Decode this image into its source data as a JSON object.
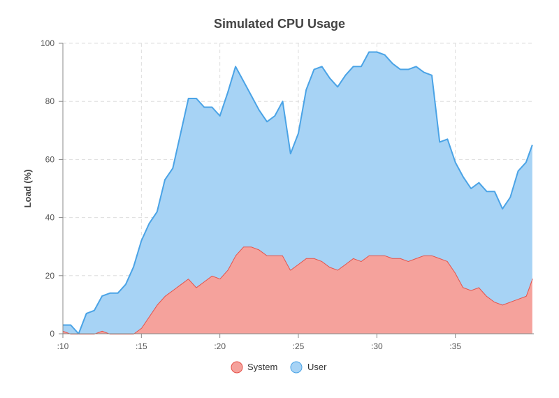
{
  "chart_data": {
    "type": "area",
    "title": "Simulated CPU Usage",
    "xlabel": "",
    "ylabel": "Load (%)",
    "stacked": true,
    "grid": true,
    "legend_position": "bottom-center",
    "x_range": [
      10,
      40
    ],
    "x_ticks": [
      {
        "value": 10,
        "label": ":10"
      },
      {
        "value": 15,
        "label": ":15"
      },
      {
        "value": 20,
        "label": ":20"
      },
      {
        "value": 25,
        "label": ":25"
      },
      {
        "value": 30,
        "label": ":30"
      },
      {
        "value": 35,
        "label": ":35"
      }
    ],
    "ylim": [
      0,
      100
    ],
    "y_ticks": [
      0,
      20,
      40,
      60,
      80,
      100
    ],
    "x": [
      10,
      10.5,
      11,
      11.5,
      12,
      12.5,
      13,
      13.5,
      14,
      14.5,
      15,
      15.5,
      16,
      16.5,
      17,
      17.5,
      18,
      18.5,
      19,
      19.5,
      20,
      20.5,
      21,
      21.5,
      22,
      22.5,
      23,
      23.5,
      24,
      24.5,
      25,
      25.5,
      26,
      26.5,
      27,
      27.5,
      28,
      28.5,
      29,
      29.5,
      30,
      30.5,
      31,
      31.5,
      32,
      32.5,
      33,
      33.5,
      34,
      34.5,
      35,
      35.5,
      36,
      36.5,
      37,
      37.5,
      38,
      38.5,
      39,
      39.5,
      39.9
    ],
    "series": [
      {
        "name": "System",
        "color": "#e5534b",
        "fill": "#f5a29c",
        "values": [
          1,
          0,
          0,
          0,
          0,
          1,
          0,
          0,
          0,
          0,
          2,
          6,
          10,
          13,
          15,
          17,
          19,
          16,
          18,
          20,
          19,
          22,
          27,
          30,
          30,
          29,
          27,
          27,
          27,
          22,
          24,
          26,
          26,
          25,
          23,
          22,
          24,
          26,
          25,
          27,
          27,
          27,
          26,
          26,
          25,
          26,
          27,
          27,
          26,
          25,
          21,
          16,
          15,
          16,
          13,
          11,
          10,
          11,
          12,
          13,
          19
        ]
      },
      {
        "name": "User",
        "color": "#4aa3e6",
        "fill": "#a7d3f5",
        "values": [
          2,
          3,
          0,
          7,
          8,
          12,
          14,
          14,
          17,
          23,
          30,
          32,
          32,
          40,
          42,
          52,
          62,
          65,
          60,
          58,
          56,
          61,
          65,
          57,
          52,
          48,
          46,
          48,
          53,
          40,
          45,
          58,
          65,
          67,
          65,
          63,
          65,
          66,
          67,
          70,
          70,
          69,
          67,
          65,
          66,
          66,
          63,
          62,
          40,
          42,
          38,
          38,
          35,
          36,
          36,
          38,
          33,
          36,
          44,
          46,
          46
        ]
      }
    ]
  },
  "legend": {
    "items": [
      {
        "label": "System",
        "color": "#f5a29c",
        "stroke": "#e5534b"
      },
      {
        "label": "User",
        "color": "#a7d3f5",
        "stroke": "#4aa3e6"
      }
    ]
  }
}
